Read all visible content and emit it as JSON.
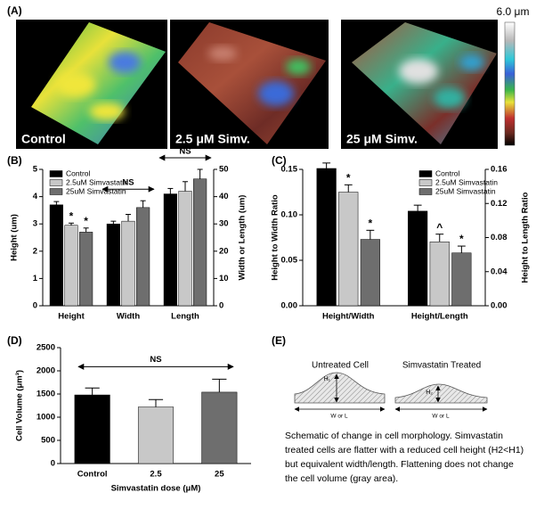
{
  "panel_a": {
    "panel_label": "(A)",
    "colorbar_label": "6.0 μm",
    "image_labels": [
      "Control",
      "2.5 μM Simv.",
      "25 μM Simv."
    ]
  },
  "chart_data": [
    {
      "type": "bar",
      "panel_label": "(B)",
      "categories": [
        "Height",
        "Width",
        "Length"
      ],
      "category_axes": [
        "y",
        "y2",
        "y2"
      ],
      "ylabel": "Height (um)",
      "y2label": "Width or Length (um)",
      "ylim": [
        0,
        5
      ],
      "yticks": [
        0,
        1,
        2,
        3,
        4,
        5
      ],
      "y2lim": [
        0,
        50
      ],
      "y2ticks": [
        0,
        10,
        20,
        30,
        40,
        50
      ],
      "legend": "upper left",
      "series": [
        {
          "name": "Control",
          "color": "#000000",
          "values": [
            3.7,
            30,
            41
          ],
          "errors": [
            0.12,
            1,
            2
          ]
        },
        {
          "name": "2.5uM Simvastatin",
          "color": "#c8c8c8",
          "values": [
            2.95,
            31,
            42
          ],
          "errors": [
            0.08,
            2.5,
            3.5
          ],
          "markers": [
            "*",
            null,
            null
          ]
        },
        {
          "name": "25uM Simvastatin",
          "color": "#6e6e6e",
          "values": [
            2.7,
            36,
            46.5
          ],
          "errors": [
            0.15,
            2.5,
            3.5
          ],
          "markers": [
            "*",
            null,
            null
          ]
        }
      ],
      "group_labels": [
        null,
        "NS",
        "NS"
      ]
    },
    {
      "type": "bar",
      "panel_label": "(C)",
      "categories": [
        "Height/Width",
        "Height/Length"
      ],
      "category_axes": [
        "y",
        "y2"
      ],
      "ylabel": "Height to Width Ratio",
      "y2label": "Height to Length Ratio",
      "ylim": [
        0,
        0.15
      ],
      "yticks": [
        {
          "value": 0,
          "label": "0.00"
        },
        {
          "value": 0.05,
          "label": "0.05"
        },
        {
          "value": 0.1,
          "label": "0.10"
        },
        {
          "value": 0.15,
          "label": "0.15"
        }
      ],
      "y2lim": [
        0,
        0.16
      ],
      "y2ticks": [
        {
          "value": 0,
          "label": "0.00"
        },
        {
          "value": 0.04,
          "label": "0.04"
        },
        {
          "value": 0.08,
          "label": "0.08"
        },
        {
          "value": 0.12,
          "label": "0.12"
        },
        {
          "value": 0.16,
          "label": "0.16"
        }
      ],
      "legend": "upper right",
      "series": [
        {
          "name": "Control",
          "color": "#000000",
          "values": [
            0.151,
            0.111
          ],
          "errors": [
            0.006,
            0.007
          ]
        },
        {
          "name": "2.5uM Simvastatin",
          "color": "#c8c8c8",
          "values": [
            0.125,
            0.075
          ],
          "errors": [
            0.008,
            0.009
          ],
          "markers": [
            "*",
            "^"
          ]
        },
        {
          "name": "25uM Simvastatin",
          "color": "#6e6e6e",
          "values": [
            0.073,
            0.062
          ],
          "errors": [
            0.01,
            0.008
          ],
          "markers": [
            "*",
            "*"
          ]
        }
      ]
    },
    {
      "type": "bar",
      "panel_label": "(D)",
      "categories": [
        "Control",
        "2.5",
        "25"
      ],
      "values": [
        1480,
        1220,
        1540
      ],
      "errors": [
        150,
        160,
        280
      ],
      "colors": [
        "#000000",
        "#c8c8c8",
        "#6e6e6e"
      ],
      "xlabel": "Simvastatin dose (μM)",
      "ylabel": "Cell Volume (μm³)",
      "ylim": [
        0,
        2500
      ],
      "yticks": [
        0,
        500,
        1000,
        1500,
        2000,
        2500
      ],
      "span_label": "NS"
    }
  ],
  "panel_e": {
    "panel_label": "(E)",
    "untreated_title": "Untreated Cell",
    "treated_title": "Simvastatin Treated",
    "h1": "H₁",
    "h2": "H₂",
    "width_label_left": "W or L",
    "width_label_right": "W or L",
    "caption_lines": [
      "Schematic of change in cell morphology. Simvastatin",
      "treated cells are flatter with a reduced cell height (H2<H1)",
      "but equivalent width/length. Flattening does not change",
      "the cell volume (gray area)."
    ]
  }
}
